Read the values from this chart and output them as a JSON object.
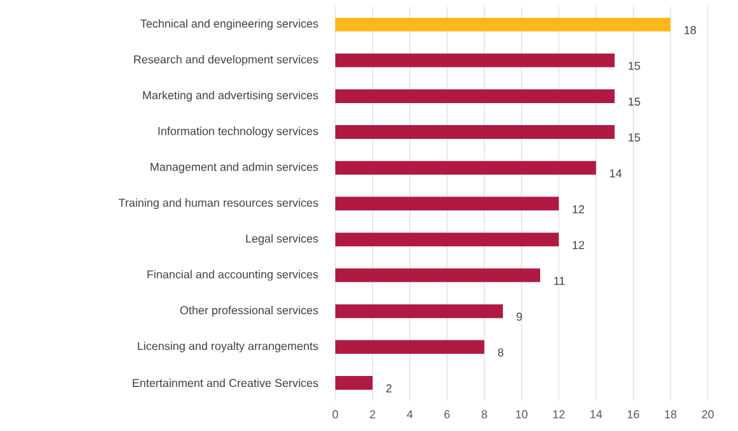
{
  "chart_data": {
    "type": "bar",
    "orientation": "horizontal",
    "categories": [
      "Technical and engineering services",
      "Research and development services",
      "Marketing and advertising services",
      "Information technology services",
      "Management and admin services",
      "Training and human resources services",
      "Legal services",
      "Financial and accounting services",
      "Other professional services",
      "Licensing and royalty arrangements",
      "Entertainment and Creative Services"
    ],
    "values": [
      18,
      15,
      15,
      15,
      14,
      12,
      12,
      11,
      9,
      8,
      2
    ],
    "colors": [
      "#ffb81c",
      "#b01a42",
      "#b01a42",
      "#b01a42",
      "#b01a42",
      "#b01a42",
      "#b01a42",
      "#b01a42",
      "#b01a42",
      "#b01a42",
      "#b01a42"
    ],
    "xlim": [
      0,
      20
    ],
    "xticks": [
      0,
      2,
      4,
      6,
      8,
      10,
      12,
      14,
      16,
      18,
      20
    ],
    "grid": "x",
    "data_labels": true
  }
}
